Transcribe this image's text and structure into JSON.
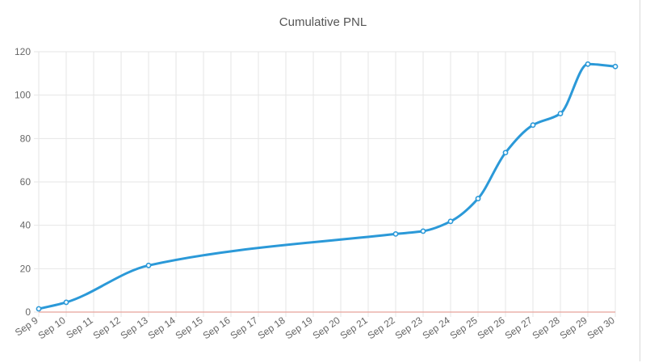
{
  "chart_data": {
    "type": "line",
    "title": "Cumulative PNL",
    "xlabel": "",
    "ylabel": "",
    "categories": [
      "Sep 9",
      "Sep 10",
      "Sep 11",
      "Sep 12",
      "Sep 13",
      "Sep 14",
      "Sep 15",
      "Sep 16",
      "Sep 17",
      "Sep 18",
      "Sep 19",
      "Sep 20",
      "Sep 21",
      "Sep 22",
      "Sep 23",
      "Sep 24",
      "Sep 25",
      "Sep 26",
      "Sep 27",
      "Sep 28",
      "Sep 29",
      "Sep 30"
    ],
    "points": [
      {
        "x": "Sep 9",
        "y": 1.5
      },
      {
        "x": "Sep 10",
        "y": 4.5
      },
      {
        "x": "Sep 13",
        "y": 21.5
      },
      {
        "x": "Sep 22",
        "y": 36
      },
      {
        "x": "Sep 23",
        "y": 37.3
      },
      {
        "x": "Sep 24",
        "y": 41.8
      },
      {
        "x": "Sep 25",
        "y": 52.3
      },
      {
        "x": "Sep 26",
        "y": 73.5
      },
      {
        "x": "Sep 27",
        "y": 86.2
      },
      {
        "x": "Sep 28",
        "y": 91.5
      },
      {
        "x": "Sep 29",
        "y": 114.3
      },
      {
        "x": "Sep 30",
        "y": 113.2
      }
    ],
    "yticks": [
      "0",
      "20",
      "40",
      "60",
      "80",
      "100",
      "120"
    ],
    "ylim": [
      0,
      120
    ],
    "grid": true,
    "zero_line": true,
    "colors": {
      "line": "#2b99d8",
      "zero_line": "#e8a29a",
      "grid": "#e6e6e6",
      "tick_text": "#666666"
    }
  }
}
